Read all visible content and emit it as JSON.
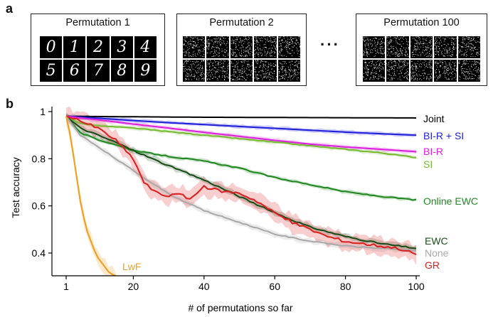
{
  "panel_a": {
    "letter": "a",
    "permutations": [
      {
        "title": "Permutation 1",
        "digits": [
          "0",
          "1",
          "2",
          "3",
          "4",
          "5",
          "6",
          "7",
          "8",
          "9"
        ]
      },
      {
        "title": "Permutation 2"
      },
      {
        "title": "Permutation 100"
      }
    ],
    "ellipsis": "···"
  },
  "panel_b": {
    "letter": "b"
  },
  "chart_data": {
    "type": "line",
    "xlabel": "# of permutations so far",
    "ylabel": "Test accuracy",
    "xlim": [
      1,
      100
    ],
    "ylim": [
      0.3,
      1.0
    ],
    "xticks": [
      1,
      20,
      40,
      60,
      80,
      100
    ],
    "yticks": [
      0.4,
      0.6,
      0.8,
      1
    ],
    "ytick_labels": [
      "0.4",
      "0.6",
      "0.8",
      "1"
    ],
    "grid": false,
    "legend": "labels at line ends (right)",
    "series": [
      {
        "name": "Joint",
        "color": "#000000",
        "band": false,
        "x": [
          1,
          20,
          40,
          60,
          80,
          100
        ],
        "y": [
          0.98,
          0.978,
          0.976,
          0.975,
          0.974,
          0.973
        ]
      },
      {
        "name": "BI-R + SI",
        "color": "#2222dd",
        "band": true,
        "x": [
          1,
          10,
          20,
          30,
          40,
          50,
          60,
          70,
          80,
          90,
          100
        ],
        "y": [
          0.98,
          0.972,
          0.962,
          0.953,
          0.945,
          0.937,
          0.929,
          0.921,
          0.913,
          0.906,
          0.9
        ]
      },
      {
        "name": "BI-R",
        "color": "#dd22dd",
        "band": true,
        "x": [
          1,
          10,
          20,
          30,
          40,
          50,
          60,
          70,
          80,
          90,
          100
        ],
        "y": [
          0.98,
          0.965,
          0.947,
          0.93,
          0.912,
          0.895,
          0.878,
          0.862,
          0.85,
          0.84,
          0.83
        ]
      },
      {
        "name": "SI",
        "color": "#77bb33",
        "band": true,
        "x": [
          1,
          5,
          10,
          20,
          30,
          40,
          50,
          60,
          70,
          80,
          90,
          100
        ],
        "y": [
          0.98,
          0.95,
          0.94,
          0.93,
          0.915,
          0.9,
          0.885,
          0.87,
          0.855,
          0.84,
          0.825,
          0.805
        ]
      },
      {
        "name": "Online EWC",
        "color": "#228822",
        "band": true,
        "x": [
          1,
          5,
          10,
          15,
          20,
          30,
          40,
          50,
          60,
          70,
          80,
          90,
          100
        ],
        "y": [
          0.98,
          0.91,
          0.88,
          0.86,
          0.835,
          0.81,
          0.79,
          0.76,
          0.72,
          0.69,
          0.66,
          0.64,
          0.625
        ]
      },
      {
        "name": "EWC",
        "color": "#1a4d1a",
        "band": true,
        "x": [
          1,
          5,
          10,
          15,
          20,
          30,
          40,
          50,
          60,
          70,
          80,
          90,
          100
        ],
        "y": [
          0.98,
          0.93,
          0.9,
          0.87,
          0.835,
          0.77,
          0.71,
          0.64,
          0.57,
          0.51,
          0.47,
          0.44,
          0.42
        ]
      },
      {
        "name": "None",
        "color": "#aaaaaa",
        "band": true,
        "x": [
          1,
          5,
          10,
          15,
          20,
          30,
          40,
          50,
          60,
          70,
          80,
          90,
          100
        ],
        "y": [
          0.98,
          0.9,
          0.85,
          0.8,
          0.75,
          0.65,
          0.58,
          0.53,
          0.48,
          0.45,
          0.43,
          0.42,
          0.41
        ]
      },
      {
        "name": "GR",
        "color": "#dd2222",
        "band": true,
        "x": [
          1,
          5,
          10,
          15,
          20,
          23,
          26,
          30,
          33,
          36,
          40,
          43,
          46,
          50,
          55,
          60,
          65,
          70,
          75,
          80,
          85,
          90,
          95,
          100
        ],
        "y": [
          0.98,
          0.96,
          0.93,
          0.88,
          0.8,
          0.7,
          0.66,
          0.64,
          0.65,
          0.63,
          0.68,
          0.67,
          0.66,
          0.655,
          0.62,
          0.57,
          0.53,
          0.5,
          0.47,
          0.45,
          0.44,
          0.43,
          0.42,
          0.395
        ]
      },
      {
        "name": "LwF",
        "color": "#f0a020",
        "band": true,
        "x": [
          1,
          2,
          3,
          4,
          5,
          6,
          7,
          8,
          9,
          10,
          11,
          12,
          13,
          14,
          15
        ],
        "y": [
          0.98,
          0.91,
          0.82,
          0.72,
          0.62,
          0.55,
          0.49,
          0.45,
          0.41,
          0.38,
          0.36,
          0.34,
          0.32,
          0.31,
          0.3
        ]
      }
    ]
  }
}
